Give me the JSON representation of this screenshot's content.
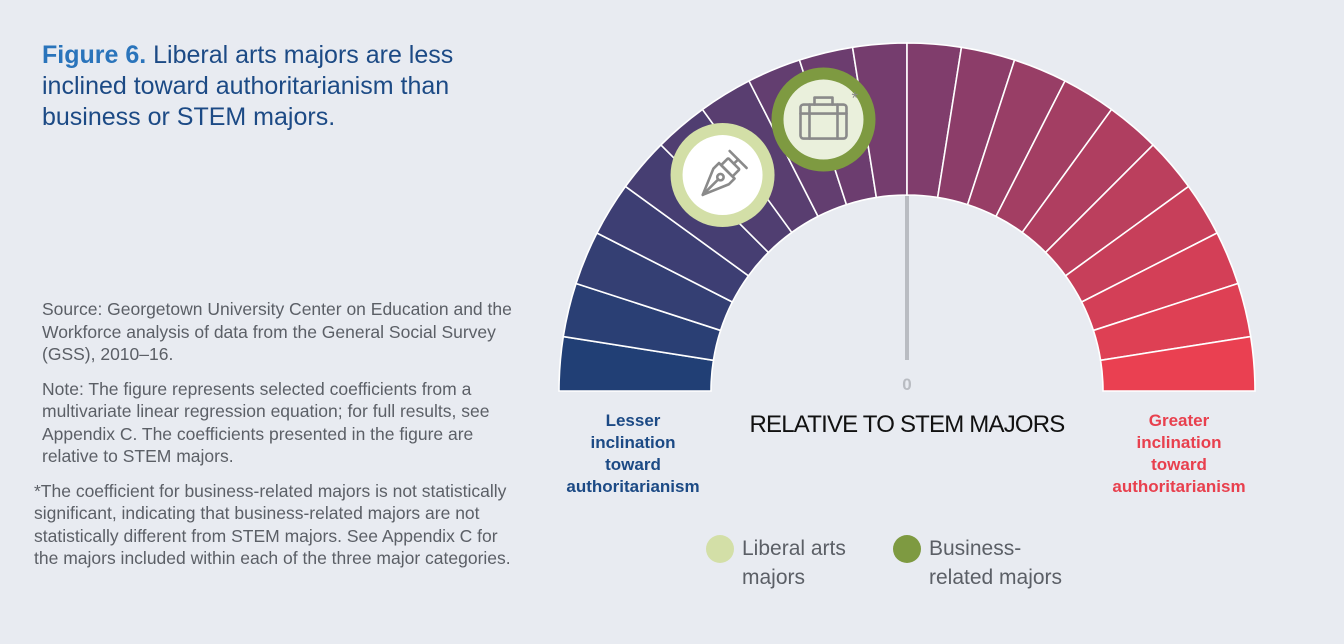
{
  "header": {
    "figure_label": "Figure 6.",
    "title_text": "Liberal arts majors are less inclined toward authoritarianism than business or STEM majors."
  },
  "notes": {
    "source": "Source: Georgetown University Center on Education and the Workforce analysis of data from the General Social Survey (GSS), 2010–16.",
    "note": "Note: The figure represents selected coefficients from a multivariate linear regression equation; for full results, see Appendix C. The coefficients presented in the figure are relative to STEM majors.",
    "footnote": "*The coefficient for business-related majors is not statistically significant, indicating that business-related majors are not statistically different from STEM majors. See Appendix C for the majors included within each of the three major categories."
  },
  "chart_data": {
    "type": "gauge",
    "segments": 20,
    "axis_label": "RELATIVE TO STEM MAJORS",
    "center_value_label": "0",
    "left_label": "Lesser inclination toward authoritarianism",
    "right_label": "Greater inclination toward authoritarianism",
    "colors": {
      "left_end": "#1c3f75",
      "middle": "#7a3d6e",
      "right_end": "#f0404f"
    },
    "series": [
      {
        "name": "Liberal arts majors",
        "segment_position": 5.5,
        "color": "#d3dfa7",
        "icon": "pen-nib-icon",
        "asterisk": ""
      },
      {
        "name": "Business-related majors",
        "segment_position": 8.1,
        "color": "#7e9a41",
        "icon": "briefcase-icon",
        "asterisk": "*"
      }
    ]
  },
  "legend": {
    "items": [
      {
        "label": "Liberal arts majors",
        "color": "#d3dfa7"
      },
      {
        "label": "Business-related majors",
        "color": "#7e9a41"
      }
    ]
  }
}
